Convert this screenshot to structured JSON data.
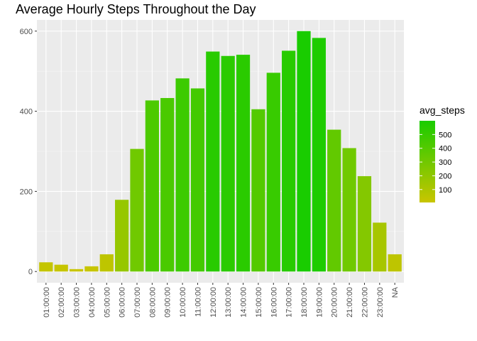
{
  "chart_data": {
    "type": "bar",
    "title": "Average Hourly Steps Throughout the Day",
    "xlabel": "",
    "ylabel": "",
    "categories": [
      "01:00:00",
      "02:00:00",
      "03:00:00",
      "04:00:00",
      "05:00:00",
      "06:00:00",
      "07:00:00",
      "08:00:00",
      "09:00:00",
      "10:00:00",
      "11:00:00",
      "12:00:00",
      "13:00:00",
      "14:00:00",
      "15:00:00",
      "16:00:00",
      "17:00:00",
      "18:00:00",
      "19:00:00",
      "20:00:00",
      "21:00:00",
      "22:00:00",
      "23:00:00",
      "NA"
    ],
    "values": [
      23,
      17,
      6,
      13,
      43,
      179,
      306,
      427,
      433,
      482,
      457,
      549,
      538,
      541,
      405,
      496,
      551,
      600,
      583,
      354,
      308,
      238,
      122,
      43
    ],
    "ylim": [
      -28,
      628
    ],
    "yticks": [
      0,
      200,
      400,
      600
    ],
    "grid": true,
    "fill_scale": {
      "title": "avg_steps",
      "low_color": "#c9c500",
      "high_color": "#19cc00",
      "domain": [
        6,
        600
      ],
      "breaks": [
        100,
        200,
        300,
        400,
        500
      ]
    },
    "legend_position": "right"
  }
}
